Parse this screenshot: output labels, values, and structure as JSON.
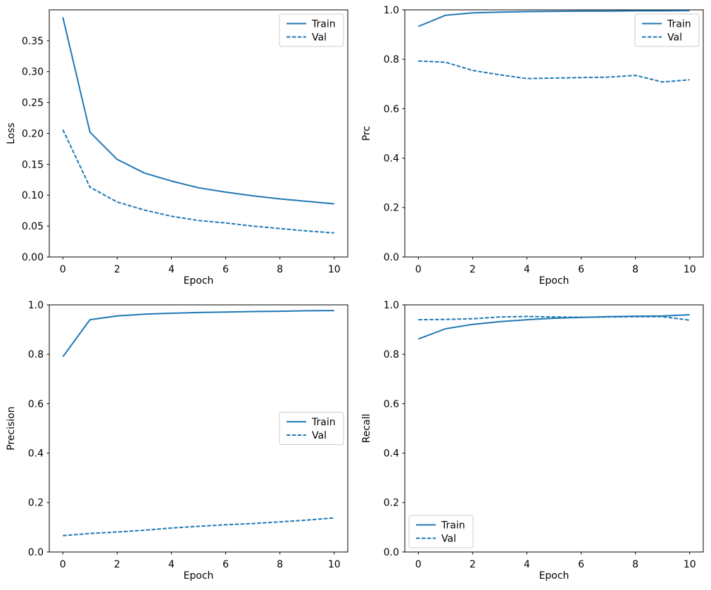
{
  "figure": {
    "background": "#ffffff",
    "line_color": "#1f77b4",
    "axis_color": "#000000",
    "legend_border_color": "#cccccc"
  },
  "chart_data": [
    {
      "type": "line",
      "name": "loss",
      "xlabel": "Epoch",
      "ylabel": "Loss",
      "x": [
        0,
        1,
        2,
        3,
        4,
        5,
        6,
        7,
        8,
        9,
        10
      ],
      "series": [
        {
          "name": "Train",
          "style": "solid",
          "values": [
            0.388,
            0.202,
            0.158,
            0.136,
            0.123,
            0.112,
            0.105,
            0.099,
            0.094,
            0.09,
            0.086
          ]
        },
        {
          "name": "Val",
          "style": "dashed",
          "values": [
            0.206,
            0.113,
            0.089,
            0.076,
            0.066,
            0.059,
            0.055,
            0.05,
            0.046,
            0.042,
            0.039
          ]
        }
      ],
      "xlim": [
        -0.5,
        10.5
      ],
      "ylim": [
        0,
        0.4
      ],
      "xticks": [
        0,
        2,
        4,
        6,
        8,
        10
      ],
      "xtick_labels": [
        "0",
        "2",
        "4",
        "6",
        "8",
        "10"
      ],
      "yticks": [
        0,
        0.05,
        0.1,
        0.15,
        0.2,
        0.25,
        0.3,
        0.35
      ],
      "ytick_labels": [
        "0.00",
        "0.05",
        "0.10",
        "0.15",
        "0.20",
        "0.25",
        "0.30",
        "0.35"
      ],
      "legend_entries": [
        "Train",
        "Val"
      ],
      "legend_position": "upper-right",
      "grid": false
    },
    {
      "type": "line",
      "name": "prc",
      "xlabel": "Epoch",
      "ylabel": "Prc",
      "x": [
        0,
        1,
        2,
        3,
        4,
        5,
        6,
        7,
        8,
        9,
        10
      ],
      "series": [
        {
          "name": "Train",
          "style": "solid",
          "values": [
            0.933,
            0.978,
            0.988,
            0.991,
            0.993,
            0.994,
            0.995,
            0.995,
            0.996,
            0.996,
            0.997
          ]
        },
        {
          "name": "Val",
          "style": "dashed",
          "values": [
            0.793,
            0.788,
            0.755,
            0.737,
            0.722,
            0.724,
            0.726,
            0.728,
            0.735,
            0.708,
            0.717
          ]
        }
      ],
      "xlim": [
        -0.5,
        10.5
      ],
      "ylim": [
        0,
        1.0
      ],
      "xticks": [
        0,
        2,
        4,
        6,
        8,
        10
      ],
      "xtick_labels": [
        "0",
        "2",
        "4",
        "6",
        "8",
        "10"
      ],
      "yticks": [
        0,
        0.2,
        0.4,
        0.6,
        0.8,
        1.0
      ],
      "ytick_labels": [
        "0.0",
        "0.2",
        "0.4",
        "0.6",
        "0.8",
        "1.0"
      ],
      "legend_entries": [
        "Train",
        "Val"
      ],
      "legend_position": "upper-right",
      "grid": false
    },
    {
      "type": "line",
      "name": "precision",
      "xlabel": "Epoch",
      "ylabel": "Precision",
      "x": [
        0,
        1,
        2,
        3,
        4,
        5,
        6,
        7,
        8,
        9,
        10
      ],
      "series": [
        {
          "name": "Train",
          "style": "solid",
          "values": [
            0.79,
            0.94,
            0.955,
            0.962,
            0.966,
            0.969,
            0.971,
            0.973,
            0.974,
            0.976,
            0.977
          ]
        },
        {
          "name": "Val",
          "style": "dashed",
          "values": [
            0.066,
            0.075,
            0.081,
            0.088,
            0.097,
            0.104,
            0.11,
            0.115,
            0.122,
            0.129,
            0.138
          ]
        }
      ],
      "xlim": [
        -0.5,
        10.5
      ],
      "ylim": [
        0,
        1.0
      ],
      "xticks": [
        0,
        2,
        4,
        6,
        8,
        10
      ],
      "xtick_labels": [
        "0",
        "2",
        "4",
        "6",
        "8",
        "10"
      ],
      "yticks": [
        0,
        0.2,
        0.4,
        0.6,
        0.8,
        1.0
      ],
      "ytick_labels": [
        "0.0",
        "0.2",
        "0.4",
        "0.6",
        "0.8",
        "1.0"
      ],
      "legend_entries": [
        "Train",
        "Val"
      ],
      "legend_position": "center-right",
      "grid": false
    },
    {
      "type": "line",
      "name": "recall",
      "xlabel": "Epoch",
      "ylabel": "Recall",
      "x": [
        0,
        1,
        2,
        3,
        4,
        5,
        6,
        7,
        8,
        9,
        10
      ],
      "series": [
        {
          "name": "Train",
          "style": "solid",
          "values": [
            0.862,
            0.903,
            0.921,
            0.932,
            0.94,
            0.946,
            0.949,
            0.952,
            0.954,
            0.955,
            0.96
          ]
        },
        {
          "name": "Val",
          "style": "dashed",
          "values": [
            0.94,
            0.941,
            0.944,
            0.951,
            0.953,
            0.951,
            0.95,
            0.951,
            0.952,
            0.952,
            0.938
          ]
        }
      ],
      "xlim": [
        -0.5,
        10.5
      ],
      "ylim": [
        0,
        1.0
      ],
      "xticks": [
        0,
        2,
        4,
        6,
        8,
        10
      ],
      "xtick_labels": [
        "0",
        "2",
        "4",
        "6",
        "8",
        "10"
      ],
      "yticks": [
        0,
        0.2,
        0.4,
        0.6,
        0.8,
        1.0
      ],
      "ytick_labels": [
        "0.0",
        "0.2",
        "0.4",
        "0.6",
        "0.8",
        "1.0"
      ],
      "legend_entries": [
        "Train",
        "Val"
      ],
      "legend_position": "lower-left",
      "grid": false
    }
  ]
}
